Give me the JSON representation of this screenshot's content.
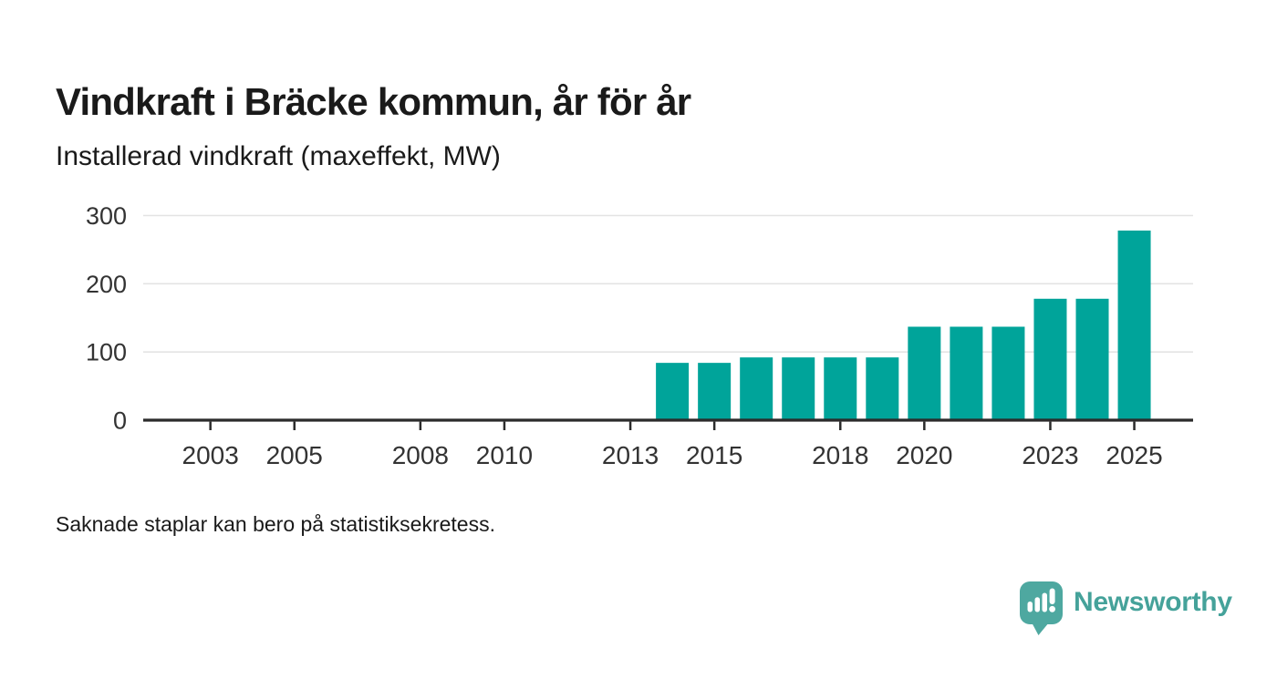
{
  "header": {
    "title": "Vindkraft i Bräcke kommun, år för år",
    "subtitle": "Installerad vindkraft (maxeffekt, MW)"
  },
  "footnote": "Saknade staplar kan bero på statistiksekretess.",
  "brand": {
    "name": "Newsworthy",
    "icon": "newsworthy-bar-chart-speech-bubble-icon"
  },
  "colors": {
    "background": "#ffffff",
    "text": "#1a1a1a",
    "bar": "#00a49a",
    "grid": "#e3e3e3",
    "axis": "#2b2b2b",
    "label": "#333333",
    "brand_text": "#45a29a",
    "brand_icon": "#4ea8a0"
  },
  "chart_data": {
    "type": "bar",
    "title": "Vindkraft i Bräcke kommun, år för år",
    "ylabel": "Installerad vindkraft (maxeffekt, MW)",
    "unit": "MW",
    "x": [
      2014,
      2015,
      2016,
      2017,
      2018,
      2019,
      2020,
      2021,
      2022,
      2023,
      2024,
      2025
    ],
    "values": [
      84,
      84,
      92,
      92,
      92,
      92,
      137,
      137,
      137,
      178,
      178,
      278
    ],
    "missing_x": "no bars shown for years before 2014",
    "xlim": [
      2001.4,
      2026.4
    ],
    "ylim": [
      0,
      300
    ],
    "xticks": [
      2003,
      2005,
      2008,
      2010,
      2013,
      2015,
      2018,
      2020,
      2023,
      2025
    ],
    "yticks": [
      0,
      100,
      200,
      300
    ],
    "grid": "horizontal gridlines only, dark baseline at 0",
    "legend": "none",
    "bar_color": "#00a49a"
  }
}
